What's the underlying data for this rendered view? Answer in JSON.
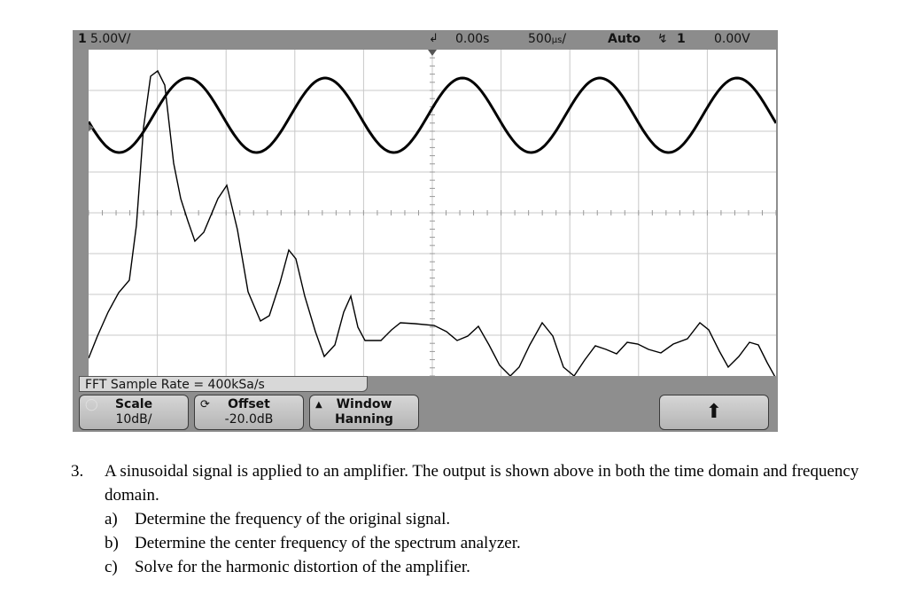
{
  "status": {
    "channel": "1",
    "volts_per_div": "5.00V/",
    "time_offset": "0.00s",
    "time_per_div": "500",
    "mode": "Auto",
    "trigger_channel": "1",
    "trigger_level": "0.00V"
  },
  "fft_label": "FFT Sample Rate = 400kSa/s",
  "softkeys": {
    "scale_title": "Scale",
    "scale_value": "10dB/",
    "offset_title": "Offset",
    "offset_value": "-20.0dB",
    "window_title": "Window",
    "window_value": "Hanning"
  },
  "question": {
    "number": "3.",
    "text": "A sinusoidal signal is applied to an amplifier.  The output is shown above in both the time domain and frequency domain.",
    "parts": [
      {
        "letter": "a)",
        "text": "Determine the frequency of the original signal."
      },
      {
        "letter": "b)",
        "text": "Determine the center frequency of the spectrum analyzer."
      },
      {
        "letter": "c)",
        "text": "Solve for the harmonic distortion of the amplifier."
      }
    ]
  },
  "colors": {
    "frame": "#8e8e8e",
    "screen": "#ffffff",
    "trace": "#000000",
    "grid": "#c8c8c8"
  }
}
